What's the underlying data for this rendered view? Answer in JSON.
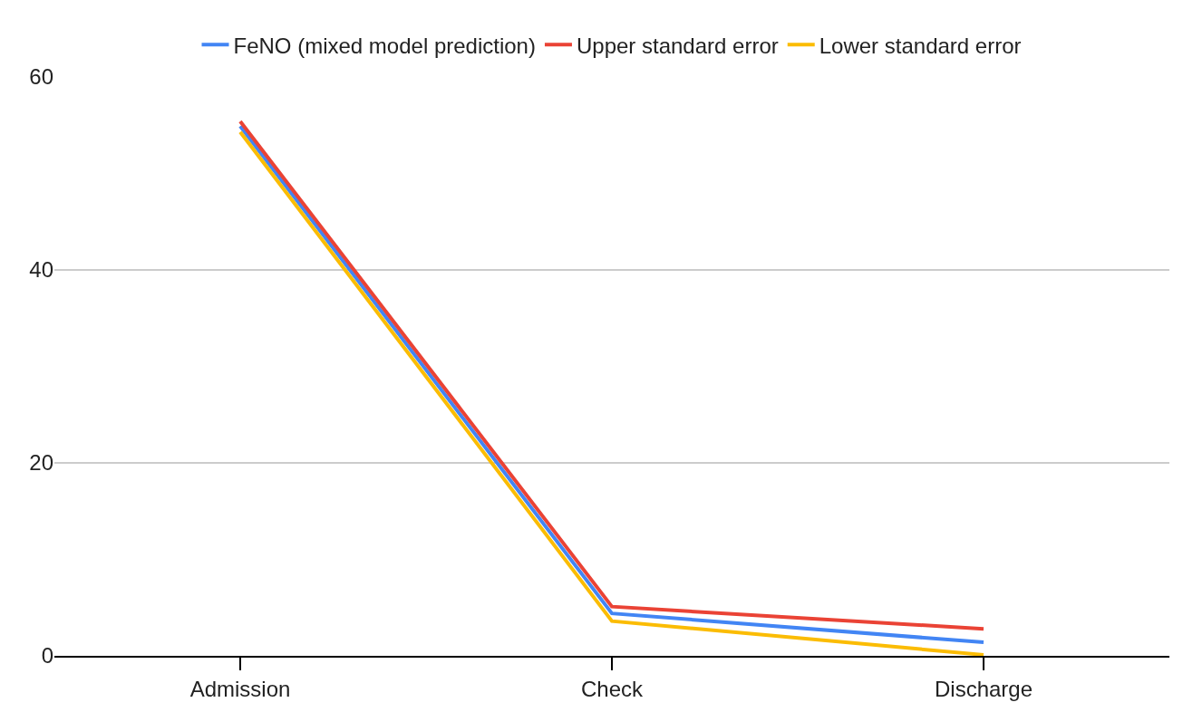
{
  "chart_data": {
    "type": "line",
    "categories": [
      "Admission",
      "Check",
      "Discharge"
    ],
    "series": [
      {
        "name": "FeNO (mixed model prediction)",
        "color": "#4285f4",
        "values": [
          54.9,
          4.4,
          1.4
        ]
      },
      {
        "name": "Upper standard error",
        "color": "#ea4335",
        "values": [
          55.4,
          5.1,
          2.8
        ]
      },
      {
        "name": "Lower standard error",
        "color": "#fbbc04",
        "values": [
          54.3,
          3.6,
          0.1
        ]
      }
    ],
    "ylim": [
      0,
      60
    ],
    "yticks": [
      0,
      20,
      40,
      60
    ],
    "grid": "y",
    "legend": "top",
    "marker": "none",
    "line_style": "solid"
  }
}
